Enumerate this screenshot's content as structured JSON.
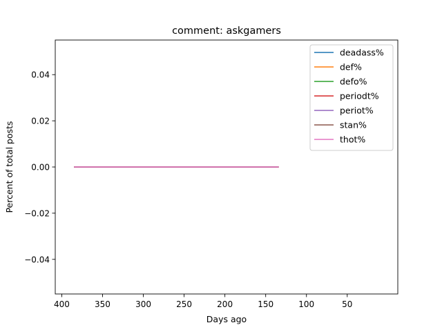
{
  "chart_data": {
    "type": "line",
    "title": "comment: askgamers",
    "xlabel": "Days ago",
    "ylabel": "Percent of total posts",
    "x_inverted": true,
    "xlim": [
      408,
      -12
    ],
    "ylim": [
      -0.055,
      0.055
    ],
    "xticks": [
      400,
      350,
      300,
      250,
      200,
      150,
      100,
      50
    ],
    "yticks": [
      0.04,
      0.02,
      0.0,
      -0.02,
      -0.04
    ],
    "xtick_labels": [
      "400",
      "350",
      "300",
      "250",
      "200",
      "150",
      "100",
      "50"
    ],
    "ytick_labels": [
      "0.04",
      "0.02",
      "0.00",
      "−0.02",
      "−0.04"
    ],
    "grid": false,
    "legend_position": "upper right",
    "x": [
      385,
      134
    ],
    "series": [
      {
        "name": "deadass%",
        "color": "#1f77b4",
        "values": [
          0,
          0
        ]
      },
      {
        "name": "def%",
        "color": "#ff7f0e",
        "values": [
          0,
          0
        ]
      },
      {
        "name": "defo%",
        "color": "#2ca02c",
        "values": [
          0,
          0
        ]
      },
      {
        "name": "periodt%",
        "color": "#d62728",
        "values": [
          0,
          0
        ]
      },
      {
        "name": "periot%",
        "color": "#9467bd",
        "values": [
          0,
          0
        ]
      },
      {
        "name": "stan%",
        "color": "#8c564b",
        "values": [
          0,
          0
        ]
      },
      {
        "name": "thot%",
        "color": "#e377c2",
        "values": [
          0,
          0
        ]
      }
    ]
  }
}
